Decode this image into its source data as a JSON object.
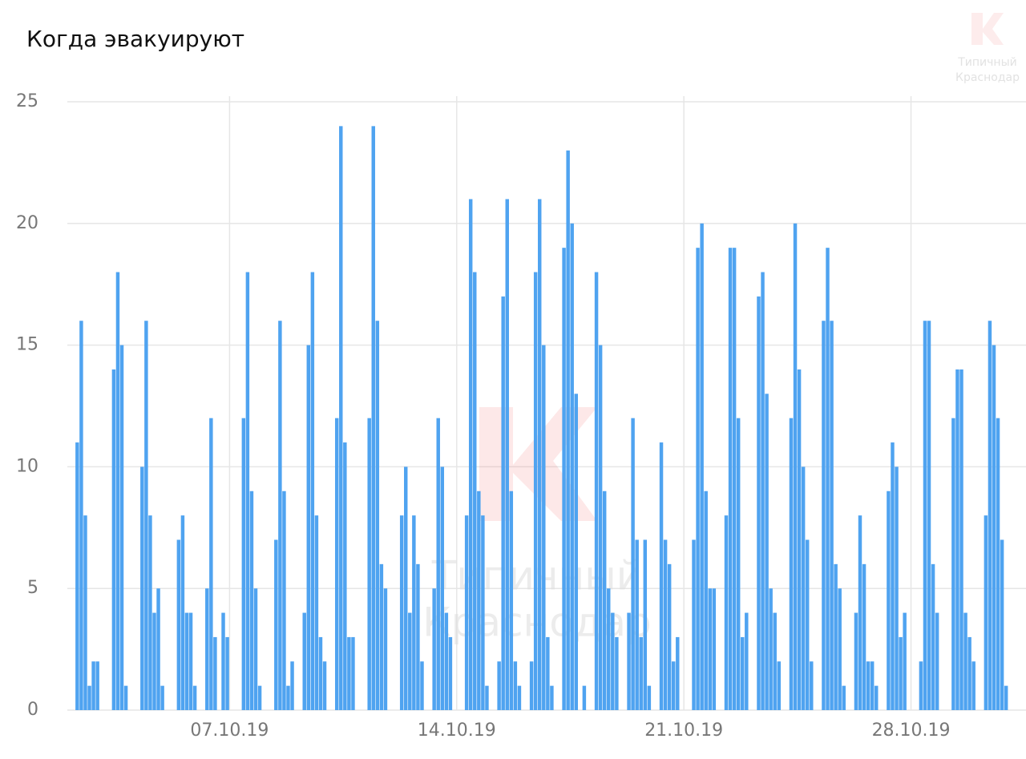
{
  "chart_data": {
    "type": "histogram",
    "title": "Когда эвакуируют",
    "watermark": [
      "Типичный",
      "Краснодар"
    ],
    "color": "#4fa3f0",
    "grid": true,
    "xlim": [
      24,
      720
    ],
    "xticks": [
      {
        "value": 144,
        "label": "07.10.19"
      },
      {
        "value": 312,
        "label": "14.10.19"
      },
      {
        "value": 480,
        "label": "21.10.19"
      },
      {
        "value": 648,
        "label": "28.10.19"
      }
    ],
    "ylim": [
      0,
      25
    ],
    "yticks": [
      0,
      5,
      10,
      15,
      20,
      25
    ],
    "bins": [
      24,
      27,
      30,
      33,
      36,
      39,
      42,
      45,
      48,
      51,
      54,
      57,
      60,
      63,
      66,
      69,
      72,
      75,
      78,
      81,
      84,
      87,
      90,
      93,
      96,
      99,
      102,
      105,
      108,
      111,
      114,
      117,
      120,
      123,
      126,
      129,
      132,
      135,
      138,
      141,
      144,
      147,
      150,
      153,
      156,
      159,
      162,
      165,
      168,
      171,
      174,
      177,
      180,
      183,
      186,
      189,
      192,
      195,
      198,
      201,
      204,
      207,
      210,
      213,
      216,
      219,
      222,
      225,
      228,
      231,
      234,
      237,
      240,
      243,
      246,
      249,
      252,
      255,
      258,
      261,
      264,
      267,
      270,
      273,
      276,
      279,
      282,
      285,
      288,
      291,
      294,
      297,
      300,
      303,
      306,
      309,
      312,
      315,
      318,
      321,
      324,
      327,
      330,
      333,
      336,
      339,
      342,
      345,
      348,
      351,
      354,
      357,
      360,
      363,
      366,
      369,
      372,
      375,
      378,
      381,
      384,
      387,
      390,
      393,
      396,
      399,
      402,
      405,
      408,
      411,
      414,
      417,
      420,
      423,
      426,
      429,
      432,
      435,
      438,
      441,
      444,
      447,
      450,
      453,
      456,
      459,
      462,
      465,
      468,
      471,
      474,
      477,
      480,
      483,
      486,
      489,
      492,
      495,
      498,
      501,
      504,
      507,
      510,
      513,
      516,
      519,
      522,
      525,
      528,
      531,
      534,
      537,
      540,
      543,
      546,
      549,
      552,
      555,
      558,
      561,
      564,
      567,
      570,
      573,
      576,
      579,
      582,
      585,
      588,
      591,
      594,
      597,
      600,
      603,
      606,
      609,
      612,
      615,
      618,
      621,
      624,
      627,
      630,
      633,
      636,
      639,
      642,
      645,
      648,
      651,
      654,
      657,
      660,
      663,
      666,
      669,
      672,
      675,
      678,
      681,
      684,
      687,
      690,
      693,
      696,
      699,
      702,
      705,
      708,
      711,
      714,
      717,
      720
    ],
    "values": [
      0,
      0,
      11,
      16,
      8,
      1,
      2,
      2,
      0,
      0,
      0,
      14,
      18,
      15,
      1,
      0,
      0,
      0,
      10,
      16,
      8,
      4,
      5,
      1,
      0,
      0,
      0,
      7,
      8,
      4,
      4,
      1,
      0,
      0,
      5,
      12,
      3,
      0,
      4,
      3,
      0,
      0,
      0,
      12,
      18,
      9,
      5,
      1,
      0,
      0,
      0,
      7,
      16,
      9,
      1,
      2,
      0,
      0,
      4,
      15,
      18,
      8,
      3,
      2,
      0,
      0,
      12,
      24,
      11,
      3,
      3,
      0,
      0,
      0,
      12,
      24,
      16,
      6,
      5,
      0,
      0,
      0,
      8,
      10,
      4,
      8,
      6,
      2,
      0,
      0,
      5,
      12,
      10,
      4,
      3,
      0,
      0,
      0,
      8,
      21,
      18,
      9,
      8,
      1,
      0,
      0,
      2,
      17,
      21,
      9,
      2,
      1,
      0,
      0,
      2,
      18,
      21,
      15,
      3,
      1,
      0,
      0,
      19,
      23,
      20,
      13,
      0,
      1,
      0,
      0,
      18,
      15,
      9,
      5,
      4,
      3,
      0,
      0,
      4,
      12,
      7,
      3,
      7,
      1,
      0,
      0,
      11,
      7,
      6,
      2,
      3,
      0,
      0,
      0,
      7,
      19,
      20,
      9,
      5,
      5,
      0,
      0,
      8,
      19,
      19,
      12,
      3,
      4,
      0,
      0,
      17,
      18,
      13,
      5,
      4,
      2,
      0,
      0,
      12,
      20,
      14,
      10,
      7,
      2,
      0,
      0,
      16,
      19,
      16,
      6,
      5,
      1,
      0,
      0,
      4,
      8,
      6,
      2,
      2,
      1,
      0,
      0,
      9,
      11,
      10,
      3,
      4,
      0,
      0,
      0,
      2,
      16,
      16,
      6,
      4,
      0,
      0,
      0,
      12,
      14,
      14,
      4,
      3,
      2,
      0,
      0,
      8,
      16,
      15,
      12,
      7,
      1
    ]
  }
}
